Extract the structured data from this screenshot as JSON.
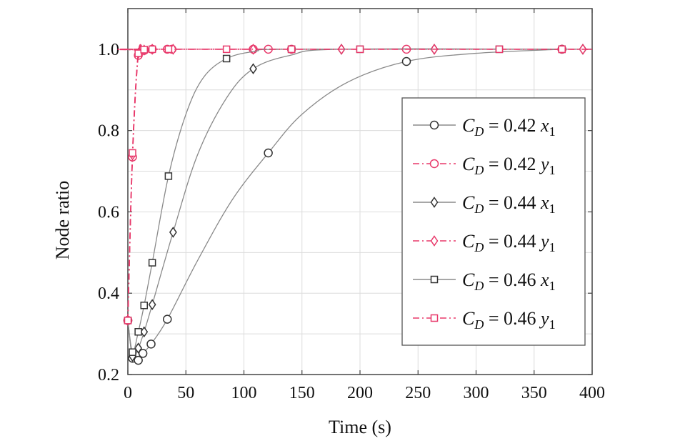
{
  "chart_data": {
    "type": "line",
    "xlabel": "Time (s)",
    "ylabel": "Node ratio",
    "xlim": [
      0,
      400
    ],
    "ylim": [
      0.2,
      1.1
    ],
    "xticks": [
      "0",
      "50",
      "100",
      "150",
      "200",
      "250",
      "300",
      "350",
      "400"
    ],
    "yticks": [
      "0.2",
      "0.4",
      "0.6",
      "0.8",
      "1.0"
    ],
    "grid": true,
    "legend_position": "right",
    "colors": {
      "x_series": "#8a8a8a",
      "y_series": "#e8386a",
      "marker_dark": "#333333"
    },
    "series": [
      {
        "legend": {
          "symbol": "C",
          "sub": "D",
          "eq": " = 0.42 ",
          "var": "x",
          "var_sub": "1"
        },
        "marker": "circle",
        "style": "solid",
        "color_key": "x_series",
        "points": [
          [
            0,
            0.333
          ],
          [
            4,
            0.24
          ],
          [
            9,
            0.235
          ],
          [
            13,
            0.252
          ],
          [
            20,
            0.275
          ],
          [
            34,
            0.336
          ],
          [
            121,
            0.745
          ],
          [
            240,
            0.97
          ],
          [
            374,
            1.0
          ]
        ],
        "curve": [
          [
            0,
            0.333
          ],
          [
            4,
            0.24
          ],
          [
            9,
            0.235
          ],
          [
            13,
            0.252
          ],
          [
            20,
            0.275
          ],
          [
            34,
            0.336
          ],
          [
            60,
            0.48
          ],
          [
            90,
            0.63
          ],
          [
            121,
            0.745
          ],
          [
            150,
            0.84
          ],
          [
            190,
            0.92
          ],
          [
            240,
            0.97
          ],
          [
            300,
            0.99
          ],
          [
            374,
            1.0
          ]
        ]
      },
      {
        "legend": {
          "symbol": "C",
          "sub": "D",
          "eq": " = 0.42 ",
          "var": "y",
          "var_sub": "1"
        },
        "marker": "circle",
        "style": "dashdot",
        "color_key": "y_series",
        "points": [
          [
            0,
            0.333
          ],
          [
            4,
            0.735
          ],
          [
            9,
            0.985
          ],
          [
            14,
            0.997
          ],
          [
            21,
            1.0
          ],
          [
            34,
            1.0
          ],
          [
            38,
            1.0
          ],
          [
            108,
            1.0
          ],
          [
            121,
            1.0
          ],
          [
            141,
            1.0
          ],
          [
            240,
            1.0
          ],
          [
            374,
            1.0
          ]
        ],
        "curve": [
          [
            0,
            0.333
          ],
          [
            4,
            0.735
          ],
          [
            9,
            0.985
          ],
          [
            14,
            0.997
          ],
          [
            21,
            1.0
          ],
          [
            400,
            1.0
          ]
        ]
      },
      {
        "legend": {
          "symbol": "C",
          "sub": "D",
          "eq": " = 0.44 ",
          "var": "x",
          "var_sub": "1"
        },
        "marker": "diamond",
        "style": "solid",
        "color_key": "x_series",
        "points": [
          [
            0,
            0.333
          ],
          [
            4,
            0.245
          ],
          [
            9,
            0.265
          ],
          [
            14,
            0.305
          ],
          [
            21,
            0.372
          ],
          [
            39,
            0.55
          ],
          [
            108,
            0.952
          ],
          [
            184,
            1.0
          ],
          [
            264,
            1.0
          ],
          [
            392,
            1.0
          ]
        ],
        "curve": [
          [
            0,
            0.333
          ],
          [
            4,
            0.245
          ],
          [
            9,
            0.265
          ],
          [
            14,
            0.305
          ],
          [
            21,
            0.372
          ],
          [
            39,
            0.55
          ],
          [
            60,
            0.74
          ],
          [
            85,
            0.88
          ],
          [
            108,
            0.952
          ],
          [
            140,
            0.985
          ],
          [
            184,
            1.0
          ],
          [
            392,
            1.0
          ]
        ]
      },
      {
        "legend": {
          "symbol": "C",
          "sub": "D",
          "eq": " = 0.44 ",
          "var": "y",
          "var_sub": "1"
        },
        "marker": "diamond",
        "style": "dashdot",
        "color_key": "y_series",
        "points": [
          [
            0,
            0.333
          ],
          [
            4,
            0.74
          ],
          [
            9,
            0.99
          ],
          [
            14,
            0.998
          ],
          [
            21,
            1.0
          ],
          [
            39,
            1.0
          ],
          [
            108,
            1.0
          ],
          [
            184,
            1.0
          ],
          [
            264,
            1.0
          ],
          [
            392,
            1.0
          ]
        ],
        "curve": [
          [
            0,
            0.333
          ],
          [
            4,
            0.74
          ],
          [
            9,
            0.99
          ],
          [
            14,
            0.998
          ],
          [
            21,
            1.0
          ],
          [
            400,
            1.0
          ]
        ]
      },
      {
        "legend": {
          "symbol": "C",
          "sub": "D",
          "eq": " = 0.46 ",
          "var": "x",
          "var_sub": "1"
        },
        "marker": "square",
        "style": "solid",
        "color_key": "x_series",
        "points": [
          [
            0,
            0.333
          ],
          [
            4,
            0.255
          ],
          [
            9,
            0.305
          ],
          [
            14,
            0.37
          ],
          [
            21,
            0.475
          ],
          [
            35,
            0.688
          ],
          [
            85,
            0.977
          ],
          [
            141,
            1.0
          ],
          [
            200,
            1.0
          ],
          [
            320,
            1.0
          ],
          [
            374,
            1.0
          ]
        ],
        "curve": [
          [
            0,
            0.333
          ],
          [
            4,
            0.255
          ],
          [
            9,
            0.305
          ],
          [
            14,
            0.37
          ],
          [
            21,
            0.475
          ],
          [
            35,
            0.688
          ],
          [
            50,
            0.84
          ],
          [
            65,
            0.93
          ],
          [
            85,
            0.977
          ],
          [
            110,
            0.995
          ],
          [
            141,
            1.0
          ],
          [
            374,
            1.0
          ]
        ]
      },
      {
        "legend": {
          "symbol": "C",
          "sub": "D",
          "eq": " = 0.46 ",
          "var": "y",
          "var_sub": "1"
        },
        "marker": "square",
        "style": "dashdot",
        "color_key": "y_series",
        "points": [
          [
            0,
            0.333
          ],
          [
            4,
            0.745
          ],
          [
            9,
            0.99
          ],
          [
            14,
            0.999
          ],
          [
            21,
            1.0
          ],
          [
            35,
            1.0
          ],
          [
            85,
            1.0
          ],
          [
            141,
            1.0
          ],
          [
            200,
            1.0
          ],
          [
            320,
            1.0
          ],
          [
            374,
            1.0
          ]
        ],
        "curve": [
          [
            0,
            0.333
          ],
          [
            4,
            0.745
          ],
          [
            9,
            0.99
          ],
          [
            14,
            0.999
          ],
          [
            21,
            1.0
          ],
          [
            400,
            1.0
          ]
        ]
      }
    ]
  }
}
